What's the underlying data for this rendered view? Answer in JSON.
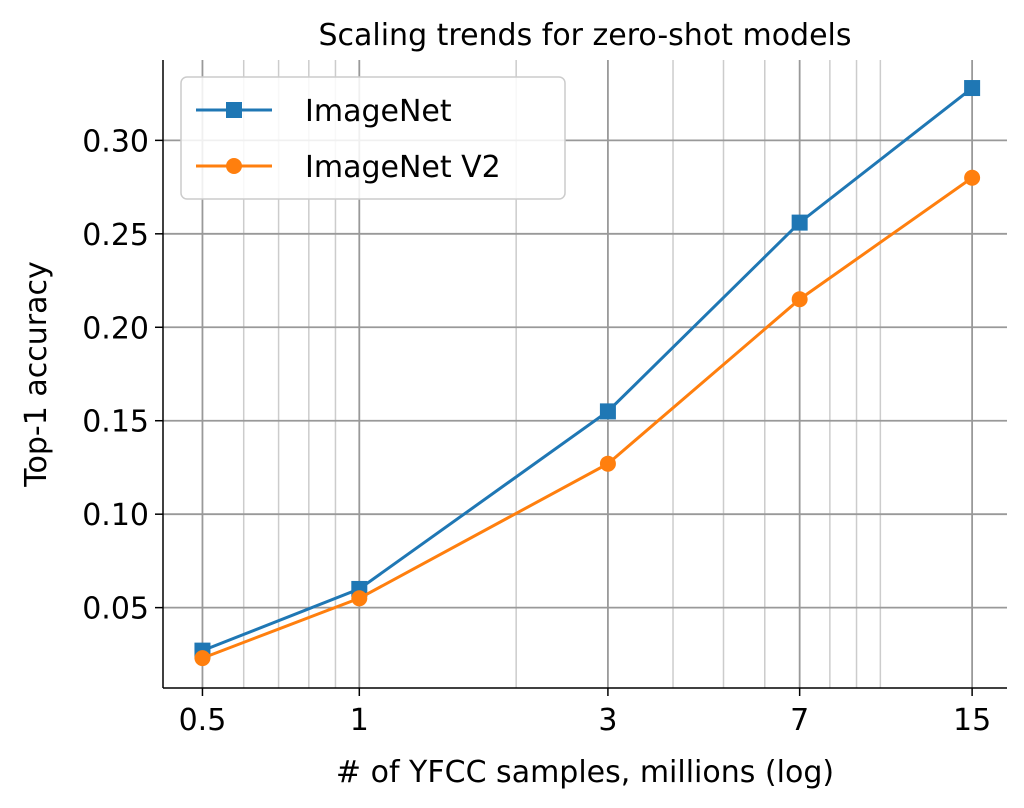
{
  "chart_data": {
    "type": "line",
    "title": "Scaling trends for zero-shot models",
    "xlabel": "# of YFCC samples, millions (log)",
    "ylabel": "Top-1 accuracy",
    "xscale": "log",
    "xlim": [
      0.42,
      17.5
    ],
    "ylim": [
      0.007,
      0.343
    ],
    "x": [
      0.5,
      1,
      3,
      7,
      15
    ],
    "xticks": [
      0.5,
      1,
      3,
      7,
      15
    ],
    "xtick_labels": [
      "0.5",
      "1",
      "3",
      "7",
      "15"
    ],
    "yticks": [
      0.05,
      0.1,
      0.15,
      0.2,
      0.25,
      0.3
    ],
    "ytick_labels": [
      "0.05",
      "0.10",
      "0.15",
      "0.20",
      "0.25",
      "0.30"
    ],
    "grid": true,
    "legend_position": "top-left",
    "series": [
      {
        "name": "ImageNet",
        "values": [
          0.027,
          0.06,
          0.155,
          0.256,
          0.328
        ],
        "color": "#1f77b4",
        "marker": "square"
      },
      {
        "name": "ImageNet V2",
        "values": [
          0.023,
          0.055,
          0.127,
          0.215,
          0.28
        ],
        "color": "#ff7f0e",
        "marker": "circle"
      }
    ]
  }
}
